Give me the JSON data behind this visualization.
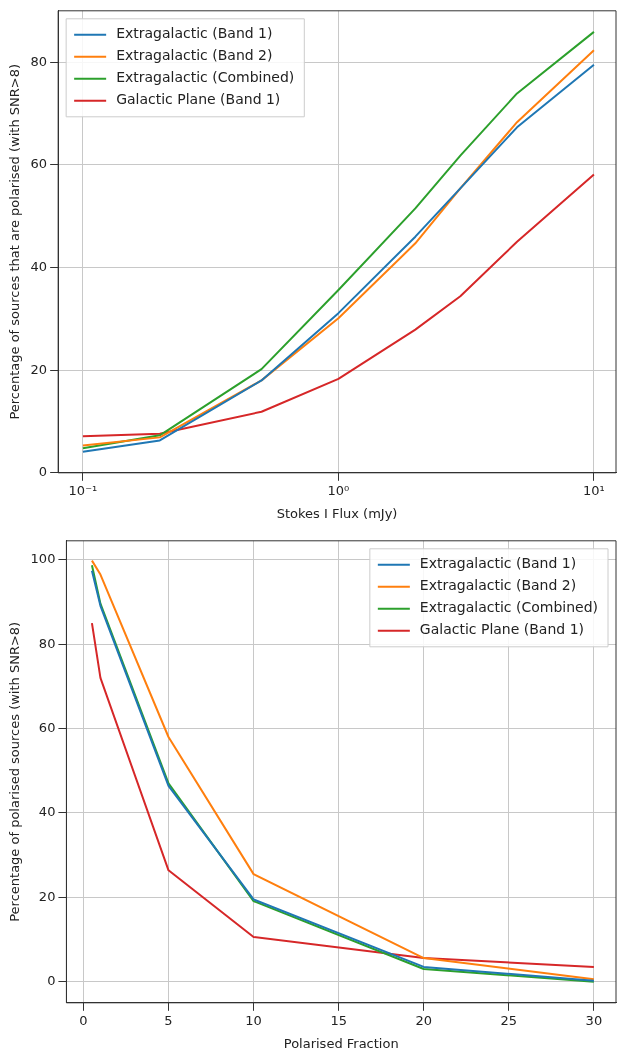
{
  "chart_data": [
    {
      "type": "line",
      "xlabel": "Stokes I Flux (mJy)",
      "ylabel": "Percentage of sources that are polarised (with SNR>8)",
      "log": "x",
      "grid": true,
      "legend": "top left",
      "x": [
        0.1,
        0.2,
        0.5,
        1,
        2,
        3,
        5,
        10
      ],
      "xlim": [
        0.08,
        12.2
      ],
      "xticks": [
        {
          "value": 0.1,
          "label": "10⁻¹"
        },
        {
          "value": 1,
          "label": "10⁰"
        },
        {
          "value": 10,
          "label": "10¹"
        }
      ],
      "ylim": [
        0,
        90
      ],
      "yticks": [
        0,
        20,
        40,
        60,
        80
      ],
      "series": [
        {
          "name": "Extragalactic (Band 1)",
          "color": "#1f77b4",
          "values": [
            4.1,
            6.3,
            18,
            31.1,
            46,
            55.4,
            67.3,
            79.5
          ]
        },
        {
          "name": "Extragalactic (Band 2)",
          "color": "#ff7f0e",
          "values": [
            5.3,
            6.9,
            18,
            30.1,
            44.7,
            55.4,
            68.3,
            82.3
          ]
        },
        {
          "name": "Extragalactic (Combined)",
          "color": "#2ca02c",
          "values": [
            4.8,
            7.3,
            20.2,
            35.6,
            51.5,
            61.8,
            73.9,
            85.9
          ]
        },
        {
          "name": "Galactic Plane (Band 1)",
          "color": "#d62728",
          "values": [
            7.1,
            7.6,
            11.9,
            18.3,
            27.9,
            34.4,
            45,
            58.1
          ]
        }
      ]
    },
    {
      "type": "line",
      "xlabel": "Polarised Fraction",
      "ylabel": "Percentage of polarised sources (with SNR>8)",
      "grid": true,
      "legend": "top right",
      "x": [
        0.5,
        1,
        5,
        10,
        20,
        30
      ],
      "xlim": [
        -1,
        31.3
      ],
      "xticks": [
        0,
        5,
        10,
        15,
        20,
        25,
        30
      ],
      "ylim": [
        -5,
        104.5
      ],
      "yticks": [
        0,
        20,
        40,
        60,
        80,
        100
      ],
      "series": [
        {
          "name": "Extragalactic (Band 1)",
          "color": "#1f77b4",
          "values": [
            97.4,
            89.1,
            46.4,
            19.5,
            3.5,
            0.2
          ]
        },
        {
          "name": "Extragalactic (Band 2)",
          "color": "#ff7f0e",
          "values": [
            99.8,
            96.5,
            58,
            25.5,
            5.6,
            0.6
          ]
        },
        {
          "name": "Extragalactic (Combined)",
          "color": "#2ca02c",
          "values": [
            98.7,
            89.6,
            47,
            19.1,
            3,
            0
          ]
        },
        {
          "name": "Galactic Plane (Band 1)",
          "color": "#d62728",
          "values": [
            85,
            72,
            26.4,
            10.6,
            5.6,
            3.5
          ]
        }
      ]
    }
  ]
}
